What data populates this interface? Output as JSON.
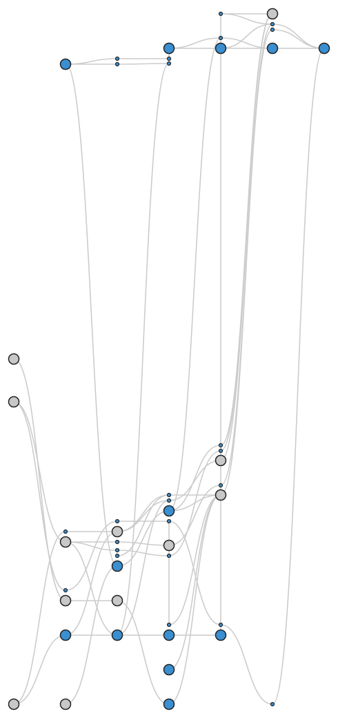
{
  "colors": {
    "background": "#ffffff",
    "link": "#cccccc",
    "node_blue": "#3a8fd1",
    "node_grey": "#c8c8c8",
    "node_outline": "#222222"
  },
  "diagram": {
    "type": "layered-graph",
    "node_kinds": [
      "blue",
      "grey",
      "small-dot"
    ]
  }
}
